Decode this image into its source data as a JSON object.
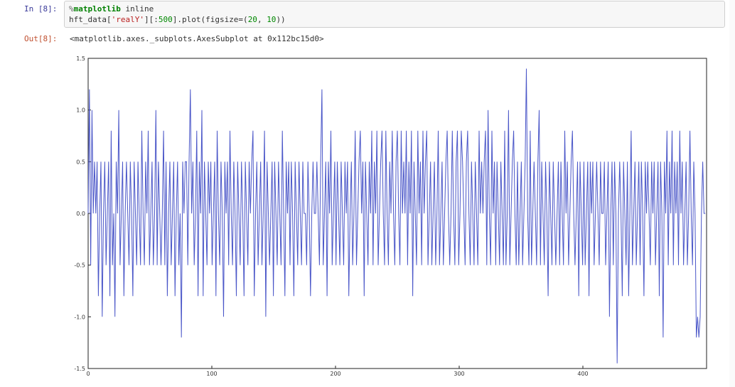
{
  "cell": {
    "in_prompt": "In [8]:",
    "out_prompt": "Out[8]:",
    "line1_magic": "%",
    "line1_kw": "matplotlib",
    "line1_rest": " inline",
    "line2_pre": "hft_data[",
    "line2_str": "'realY'",
    "line2_mid": "][:",
    "line2_num1": "500",
    "line2_post": "].plot(figsize=(",
    "line2_num2": "20",
    "line2_sep": ", ",
    "line2_num3": "10",
    "line2_end": "))",
    "output_text": "<matplotlib.axes._subplots.AxesSubplot at 0x112bc15d0>"
  },
  "chart_data": {
    "type": "line",
    "xlim": [
      0,
      500
    ],
    "ylim": [
      -1.5,
      1.5
    ],
    "xticks": [
      "0",
      "100",
      "200",
      "300",
      "400"
    ],
    "yticks": [
      "1.5",
      "1.0",
      "0.5",
      "0.0",
      "-0.5",
      "-1.0",
      "-1.5"
    ],
    "grid": false,
    "color": "#4a56c8",
    "series": [
      {
        "values": [
          0.0,
          1.2,
          -0.5,
          1.0,
          0.0,
          0.5,
          0.0,
          0.5,
          -0.8,
          0.0,
          0.5,
          -1.0,
          0.0,
          0.5,
          -0.5,
          0.0,
          0.5,
          -0.8,
          0.8,
          -0.5,
          0.0,
          -1.0,
          0.5,
          0.0,
          1.0,
          -0.5,
          0.0,
          0.5,
          -0.8,
          0.0,
          0.5,
          0.0,
          -0.5,
          0.5,
          0.0,
          -0.8,
          0.5,
          0.0,
          -0.5,
          0.5,
          0.0,
          -0.5,
          0.8,
          0.0,
          -0.5,
          0.5,
          0.0,
          0.8,
          -0.5,
          0.0,
          0.5,
          -0.5,
          0.0,
          1.0,
          -0.5,
          0.5,
          0.0,
          -0.5,
          0.0,
          0.8,
          -0.5,
          0.5,
          -0.8,
          0.0,
          0.5,
          -0.5,
          0.0,
          0.5,
          -0.8,
          0.0,
          0.5,
          -0.5,
          0.0,
          -1.2,
          0.5,
          0.0,
          0.5,
          0.5,
          -0.5,
          0.5,
          1.2,
          0.0,
          0.5,
          -0.5,
          0.0,
          0.8,
          -0.8,
          0.5,
          0.0,
          1.0,
          -0.8,
          0.5,
          0.0,
          -0.5,
          0.5,
          0.0,
          0.5,
          -0.5,
          0.0,
          0.5,
          -0.8,
          0.8,
          0.0,
          -0.5,
          0.5,
          0.0,
          -1.0,
          0.5,
          0.0,
          0.5,
          -0.5,
          0.8,
          0.0,
          -0.5,
          0.5,
          0.0,
          -0.8,
          0.5,
          0.0,
          -0.5,
          0.5,
          0.0,
          -0.8,
          0.5,
          0.0,
          -0.5,
          0.5,
          0.0,
          0.5,
          0.8,
          -0.8,
          0.0,
          0.5,
          -0.5,
          0.0,
          0.5,
          -0.5,
          0.0,
          0.8,
          -1.0,
          0.5,
          0.0,
          -0.5,
          0.0,
          0.5,
          -0.8,
          0.5,
          0.0,
          -0.5,
          0.5,
          0.0,
          -0.5,
          0.8,
          0.0,
          -0.8,
          0.5,
          0.0,
          0.5,
          -0.5,
          0.5,
          0.0,
          -0.8,
          0.5,
          0.0,
          -0.5,
          0.5,
          0.0,
          -0.5,
          0.5,
          0.0,
          0.0,
          -0.5,
          0.5,
          0.0,
          -0.8,
          0.0,
          0.5,
          0.0,
          0.0,
          0.5,
          0.0,
          -0.5,
          0.5,
          1.2,
          -0.5,
          0.0,
          0.5,
          -0.8,
          0.5,
          0.0,
          0.8,
          -0.5,
          0.0,
          0.5,
          -0.5,
          0.5,
          0.0,
          -0.5,
          0.5,
          0.0,
          -0.5,
          0.5,
          0.0,
          0.5,
          -0.8,
          0.0,
          0.5,
          -0.5,
          0.0,
          0.8,
          -0.5,
          0.0,
          0.5,
          0.8,
          0.0,
          0.5,
          -0.8,
          0.5,
          0.0,
          -0.5,
          0.5,
          0.0,
          0.8,
          -0.5,
          0.5,
          0.0,
          0.8,
          -0.5,
          0.0,
          0.5,
          0.8,
          0.0,
          -0.5,
          0.8,
          0.0,
          -0.5,
          0.5,
          0.0,
          0.8,
          0.0,
          -0.5,
          0.5,
          0.8,
          0.0,
          -0.5,
          0.8,
          0.0,
          0.5,
          0.0,
          0.8,
          -0.5,
          0.5,
          0.0,
          0.8,
          -0.8,
          0.5,
          0.0,
          -0.5,
          0.8,
          0.0,
          0.5,
          -0.5,
          0.8,
          0.0,
          0.5,
          0.8,
          -0.5,
          0.0,
          0.5,
          -0.5,
          0.0,
          0.5,
          -0.5,
          0.0,
          0.8,
          -0.5,
          0.0,
          0.5,
          -0.5,
          0.0,
          0.5,
          0.8,
          0.0,
          -0.5,
          0.0,
          0.8,
          0.0,
          -0.5,
          0.5,
          0.8,
          -0.5,
          0.0,
          0.8,
          0.5,
          0.0,
          -0.5,
          0.5,
          0.8,
          0.0,
          -0.5,
          0.5,
          0.0,
          -0.5,
          0.5,
          0.0,
          -0.5,
          0.8,
          0.0,
          0.5,
          0.0,
          0.5,
          0.8,
          -0.5,
          1.0,
          0.0,
          -0.5,
          0.8,
          0.0,
          0.5,
          -0.5,
          0.5,
          0.0,
          -0.5,
          0.5,
          0.0,
          -0.5,
          0.8,
          -0.5,
          0.0,
          1.0,
          -0.5,
          0.0,
          0.5,
          0.8,
          0.0,
          -0.5,
          0.5,
          -0.5,
          0.0,
          0.5,
          -0.5,
          0.0,
          0.5,
          1.4,
          0.0,
          -0.5,
          0.8,
          -0.5,
          0.0,
          0.5,
          0.0,
          -0.5,
          0.5,
          1.0,
          -0.5,
          0.5,
          0.0,
          -0.5,
          0.5,
          0.0,
          -0.8,
          0.5,
          0.0,
          -0.5,
          0.5,
          0.0,
          -0.5,
          0.0,
          0.5,
          -0.5,
          0.5,
          0.0,
          -0.5,
          0.8,
          0.0,
          0.5,
          -0.5,
          0.0,
          0.5,
          0.8,
          0.0,
          -0.5,
          0.0,
          0.5,
          -0.8,
          0.5,
          0.0,
          -0.5,
          0.5,
          -0.5,
          0.0,
          0.5,
          -0.8,
          0.5,
          0.0,
          0.5,
          -0.5,
          0.0,
          0.5,
          0.0,
          -0.5,
          0.5,
          0.0,
          0.0,
          0.5,
          -0.5,
          0.0,
          0.5,
          -1.0,
          0.0,
          0.5,
          -0.5,
          0.5,
          0.0,
          -1.45,
          0.0,
          0.5,
          0.0,
          -0.8,
          0.5,
          0.0,
          -0.5,
          0.5,
          -0.8,
          0.0,
          0.8,
          -0.5,
          0.0,
          0.5,
          -0.5,
          0.0,
          0.5,
          -0.5,
          0.5,
          0.0,
          -0.8,
          0.5,
          0.0,
          0.5,
          0.0,
          -0.5,
          0.5,
          0.0,
          0.5,
          -0.5,
          0.0,
          0.5,
          -0.8,
          0.5,
          0.0,
          -1.2,
          0.5,
          0.0,
          0.8,
          -0.5,
          0.5,
          0.0,
          0.8,
          -0.5,
          0.5,
          0.0,
          0.5,
          -0.5,
          0.8,
          0.0,
          0.5,
          -0.5,
          0.0,
          0.5,
          -0.5,
          0.0,
          0.8,
          0.0,
          -0.5,
          0.5,
          0.0,
          -1.2,
          -1.0,
          -1.2,
          -1.0,
          0.0,
          0.5,
          0.0,
          0.0
        ]
      }
    ]
  }
}
